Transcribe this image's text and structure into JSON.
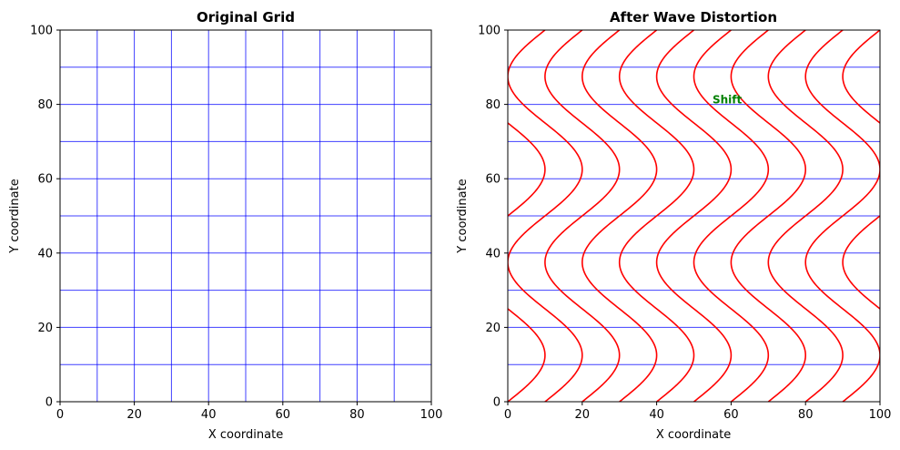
{
  "chart_data": [
    {
      "type": "line",
      "title": "Original Grid",
      "xlabel": "X coordinate",
      "ylabel": "Y coordinate",
      "xlim": [
        0,
        100
      ],
      "ylim": [
        0,
        100
      ],
      "xticks": [
        0,
        20,
        40,
        60,
        80,
        100
      ],
      "yticks": [
        0,
        20,
        40,
        60,
        80,
        100
      ],
      "vertical_lines_x": [
        10,
        20,
        30,
        40,
        50,
        60,
        70,
        80,
        90
      ],
      "horizontal_lines_y": [
        10,
        20,
        30,
        40,
        50,
        60,
        70,
        80,
        90
      ],
      "line_color": "#0000ff",
      "grid": false
    },
    {
      "type": "line",
      "title": "After Wave Distortion",
      "xlabel": "X coordinate",
      "ylabel": "Y coordinate",
      "xlim": [
        0,
        100
      ],
      "ylim": [
        0,
        100
      ],
      "xticks": [
        0,
        20,
        40,
        60,
        80,
        100
      ],
      "yticks": [
        0,
        20,
        40,
        60,
        80,
        100
      ],
      "horizontal_lines_y": [
        10,
        20,
        30,
        40,
        50,
        60,
        70,
        80,
        90
      ],
      "horizontal_line_color": "#0000ff",
      "wave_lines": {
        "base_x": [
          0,
          10,
          20,
          30,
          40,
          50,
          60,
          70,
          80,
          90,
          100
        ],
        "amplitude": 10,
        "wavelength_y": 50,
        "color": "#ff0000"
      },
      "annotation": {
        "text": "Shift",
        "x": 55,
        "y": 80,
        "color": "#008000"
      },
      "grid": false
    }
  ]
}
